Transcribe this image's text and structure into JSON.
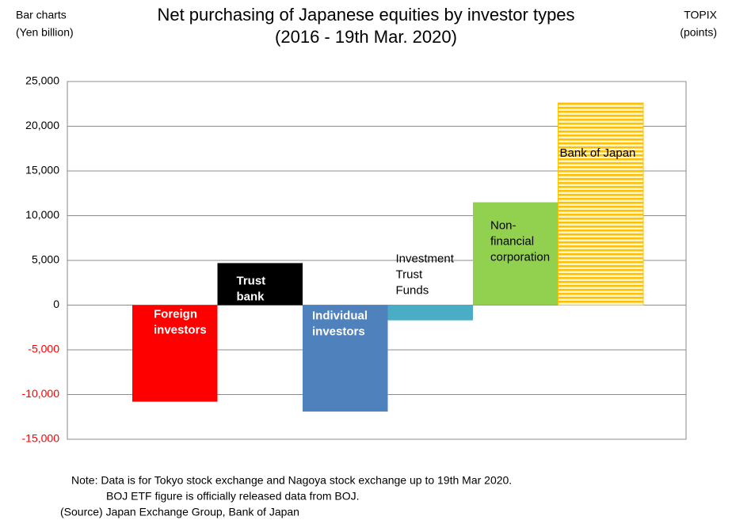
{
  "chart_data": {
    "type": "bar",
    "title": [
      "Net purchasing of Japanese equities by investor types",
      "(2016 - 19th Mar. 2020)"
    ],
    "left_axis_label": [
      "Bar charts",
      "(Yen billion)"
    ],
    "right_axis_label": [
      "TOPIX",
      "(points)"
    ],
    "categories": [
      [
        "Foreign",
        "investors"
      ],
      [
        "Trust",
        "bank"
      ],
      [
        "Individual",
        "investors"
      ],
      [
        "Investment",
        "Trust",
        "Funds"
      ],
      [
        "Non-",
        "financial",
        "corporation"
      ],
      [
        "Bank of Japan"
      ]
    ],
    "values": [
      -10800,
      4700,
      -11900,
      -1700,
      11500,
      22600
    ],
    "colors": [
      "#ff0000",
      "#000000",
      "#4f81bd",
      "#4bacc6",
      "#92d050",
      "#ffc000"
    ],
    "label_colors": [
      "#ffffff",
      "#ffffff",
      "#ffffff",
      "#000000",
      "#000000",
      "#000000"
    ],
    "ylim": [
      -15000,
      25000
    ],
    "yticks": [
      {
        "value": -15000,
        "label": "-15,000"
      },
      {
        "value": -10000,
        "label": "-10,000"
      },
      {
        "value": -5000,
        "label": "-5,000"
      },
      0,
      {
        "value": 5000,
        "label": "5,000"
      },
      {
        "value": 10000,
        "label": "10,000"
      },
      {
        "value": 15000,
        "label": "15,000"
      },
      {
        "value": 20000,
        "label": "20,000"
      },
      {
        "value": 25000,
        "label": "25,000"
      }
    ],
    "negative_tick_color": "#ff0000",
    "grid": true,
    "notes": [
      "Note: Data is for Tokyo stock exchange and Nagoya stock exchange up to 19th Mar 2020.",
      "BOJ ETF figure is officially released data from BOJ.",
      "(Source) Japan Exchange Group, Bank of Japan"
    ]
  }
}
